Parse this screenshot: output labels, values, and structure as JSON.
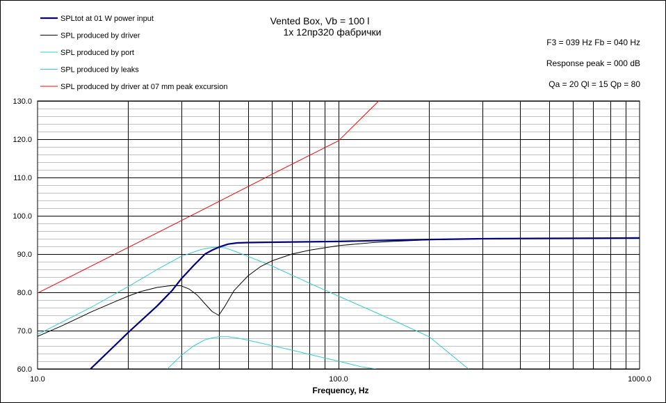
{
  "chart_data": {
    "type": "line",
    "title": "Vented Box, Vb = 100 l",
    "subtitle": "1x 12пр320 фабрички",
    "xlabel": "Frequency, Hz",
    "ylabel": "",
    "xscale": "log",
    "xlim": [
      10,
      1000
    ],
    "ylim": [
      60,
      130
    ],
    "grid": true,
    "legend_position": "top-left",
    "x_tick_labels": [
      "10.0",
      "100.0",
      "1000.0"
    ],
    "y_tick_labels": [
      "60.0",
      "70.0",
      "80.0",
      "90.0",
      "100.0",
      "110.0",
      "120.0",
      "130.0"
    ],
    "annotations": [
      "F3 = 039 Hz  Fb = 040 Hz",
      "Response peak = 000 dB",
      "Qa = 20  Ql = 15  Qp = 80"
    ],
    "series": [
      {
        "name": "SPLtot at 01 W power input",
        "color": "#000080",
        "x": [
          15,
          18,
          20,
          22,
          25,
          28,
          30,
          33,
          36,
          38,
          40,
          43,
          46,
          50,
          60,
          80,
          100,
          150,
          200,
          300,
          500,
          1000
        ],
        "y": [
          60,
          66,
          69.5,
          72.5,
          76.5,
          80.5,
          83.5,
          87,
          90,
          91,
          91.8,
          92.6,
          92.9,
          93,
          93.1,
          93.2,
          93.3,
          93.6,
          93.8,
          94,
          94.1,
          94.2
        ]
      },
      {
        "name": "SPL produced by driver",
        "color": "#000000",
        "x": [
          10,
          12,
          15,
          18,
          20,
          22,
          25,
          28,
          30,
          32,
          34,
          36,
          38,
          40,
          42,
          45,
          50,
          55,
          60,
          70,
          80,
          100,
          130,
          150,
          200,
          300,
          500,
          1000
        ],
        "y": [
          68.5,
          71.2,
          74.8,
          77.5,
          79,
          80.2,
          81.3,
          81.8,
          81.7,
          80.8,
          79.2,
          77,
          75,
          74,
          76.5,
          80.5,
          84.3,
          86.7,
          88.2,
          90,
          91,
          92.2,
          93,
          93.3,
          93.7,
          94,
          94.1,
          94.2
        ]
      },
      {
        "name": "SPL produced by port",
        "color": "#33CCCC",
        "x": [
          10,
          15,
          20,
          25,
          30,
          35,
          38,
          40,
          42,
          45,
          50,
          60,
          70,
          80,
          100,
          150,
          200,
          270
        ],
        "y": [
          69,
          76,
          81.5,
          86,
          89.4,
          91.2,
          91.7,
          91.8,
          91.6,
          90.8,
          89.4,
          86.9,
          84.5,
          82.4,
          79,
          72.9,
          68.4,
          60
        ]
      },
      {
        "name": "SPL produced by leaks",
        "color": "#33CCCC",
        "x": [
          27,
          30,
          33,
          36,
          38,
          40,
          43,
          46,
          50,
          60,
          70,
          80,
          100,
          120,
          133
        ],
        "y": [
          60,
          63.5,
          66,
          67.6,
          68.1,
          68.4,
          68.4,
          68.1,
          67.5,
          66.1,
          64.9,
          63.8,
          62,
          60.5,
          60
        ]
      },
      {
        "name": "SPL produced by driver at 07 mm peak excursion",
        "color": "#FF0000",
        "x": [
          10,
          20,
          30,
          40,
          60,
          100,
          136
        ],
        "y": [
          79.8,
          91.7,
          98.7,
          103.7,
          110.8,
          119.6,
          130
        ]
      }
    ]
  }
}
